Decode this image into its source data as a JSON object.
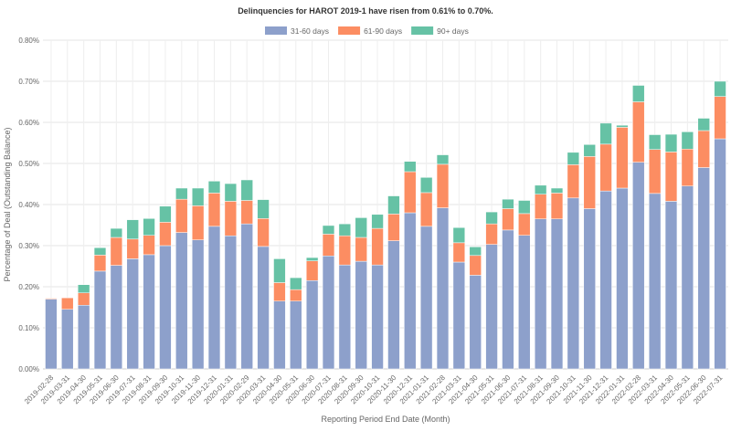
{
  "chart_data": {
    "type": "bar",
    "stacked": true,
    "title": "Delinquencies for HAROT 2019-1 have risen from 0.61% to 0.70%.",
    "xlabel": "Reporting Period End Date (Month)",
    "ylabel": "Percentage of Deal (Outstanding Balance)",
    "ylim": [
      0,
      0.8
    ],
    "yticks": [
      "0.00%",
      "0.10%",
      "0.20%",
      "0.30%",
      "0.40%",
      "0.50%",
      "0.60%",
      "0.70%",
      "0.80%"
    ],
    "grid": true,
    "legend_position": "top",
    "categories": [
      "2019-02-28",
      "2019-03-31",
      "2019-04-30",
      "2019-05-31",
      "2019-06-30",
      "2019-07-31",
      "2019-08-31",
      "2019-09-30",
      "2019-10-31",
      "2019-11-30",
      "2019-12-31",
      "2020-01-31",
      "2020-02-29",
      "2020-03-31",
      "2020-04-30",
      "2020-05-31",
      "2020-06-30",
      "2020-07-31",
      "2020-08-31",
      "2020-09-30",
      "2020-10-31",
      "2020-11-30",
      "2020-12-31",
      "2021-01-31",
      "2021-02-28",
      "2021-03-31",
      "2021-04-30",
      "2021-05-31",
      "2021-06-30",
      "2021-07-31",
      "2021-08-31",
      "2021-09-30",
      "2021-10-31",
      "2021-11-30",
      "2021-12-31",
      "2022-01-31",
      "2022-02-28",
      "2022-03-31",
      "2022-04-30",
      "2022-05-31",
      "2022-06-30",
      "2022-07-31"
    ],
    "series": [
      {
        "name": "31-60 days",
        "color": "#8da0cb",
        "values": [
          0.17,
          0.145,
          0.155,
          0.238,
          0.252,
          0.268,
          0.278,
          0.3,
          0.332,
          0.314,
          0.347,
          0.324,
          0.353,
          0.298,
          0.165,
          0.165,
          0.215,
          0.275,
          0.253,
          0.262,
          0.253,
          0.312,
          0.38,
          0.347,
          0.392,
          0.26,
          0.228,
          0.303,
          0.338,
          0.325,
          0.365,
          0.365,
          0.416,
          0.39,
          0.433,
          0.44,
          0.503,
          0.427,
          0.408,
          0.445,
          0.49,
          0.56
        ]
      },
      {
        "name": "61-90 days",
        "color": "#fc8d62",
        "values": [
          0.002,
          0.028,
          0.03,
          0.039,
          0.068,
          0.048,
          0.047,
          0.057,
          0.081,
          0.083,
          0.081,
          0.084,
          0.057,
          0.068,
          0.045,
          0.028,
          0.048,
          0.053,
          0.071,
          0.058,
          0.089,
          0.065,
          0.1,
          0.082,
          0.106,
          0.047,
          0.048,
          0.05,
          0.052,
          0.053,
          0.06,
          0.063,
          0.081,
          0.127,
          0.114,
          0.148,
          0.147,
          0.107,
          0.12,
          0.09,
          0.09,
          0.103
        ]
      },
      {
        "name": "90+ days",
        "color": "#66c2a5",
        "values": [
          0.0,
          0.0,
          0.02,
          0.018,
          0.022,
          0.047,
          0.041,
          0.039,
          0.027,
          0.043,
          0.029,
          0.043,
          0.05,
          0.046,
          0.058,
          0.029,
          0.008,
          0.021,
          0.029,
          0.048,
          0.034,
          0.044,
          0.025,
          0.037,
          0.023,
          0.037,
          0.021,
          0.029,
          0.023,
          0.032,
          0.022,
          0.012,
          0.03,
          0.029,
          0.051,
          0.005,
          0.04,
          0.036,
          0.043,
          0.042,
          0.03,
          0.037
        ]
      }
    ]
  }
}
